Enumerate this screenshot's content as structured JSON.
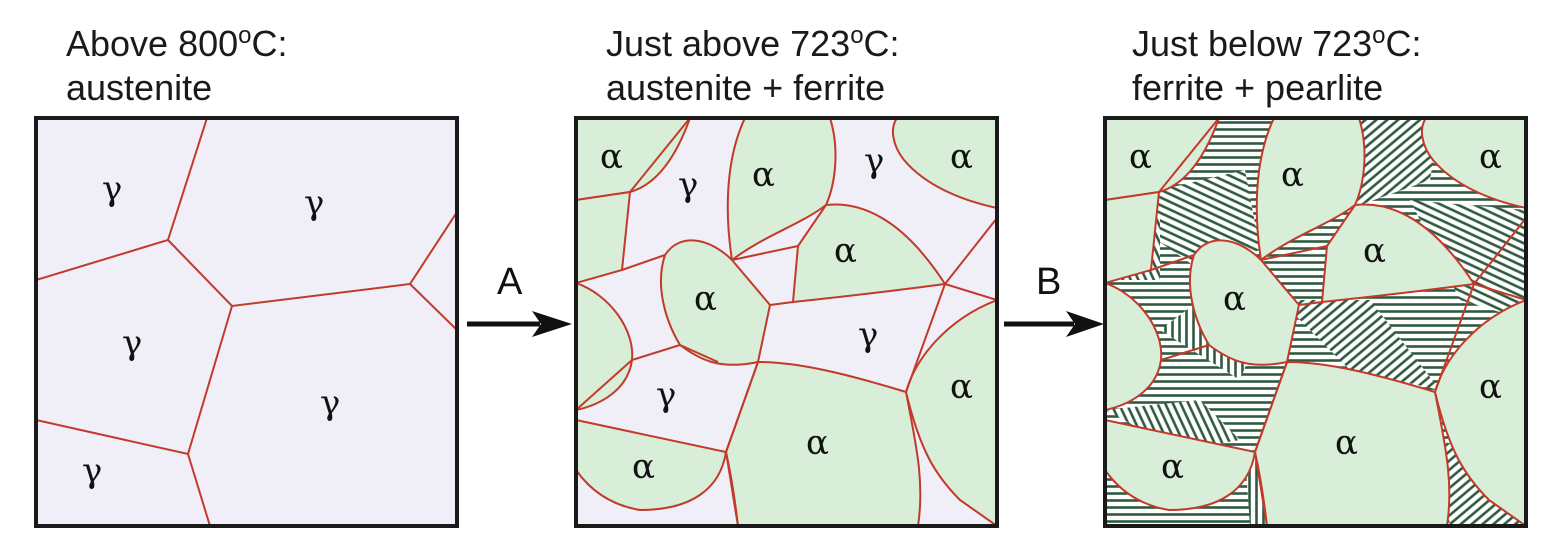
{
  "panels": [
    {
      "line1": "Above 800",
      "sup": "o",
      "line1_end": "C:",
      "line2": "austenite"
    },
    {
      "line1": "Just above 723",
      "sup": "o",
      "line1_end": "C:",
      "line2": "austenite + ferrite"
    },
    {
      "line1": "Just below 723",
      "sup": "o",
      "line1_end": "C:",
      "line2": "ferrite + pearlite"
    }
  ],
  "arrows": [
    {
      "label": "A"
    },
    {
      "label": "B"
    }
  ],
  "symbols": {
    "austenite": "γ",
    "ferrite": "α"
  },
  "colors": {
    "austenite_fill": "#f0eef7",
    "ferrite_fill": "#d8eed8",
    "grain_boundary": "#c23a2a",
    "pearlite_lines": "#2f5a40",
    "frame": "#1a1a1a"
  }
}
